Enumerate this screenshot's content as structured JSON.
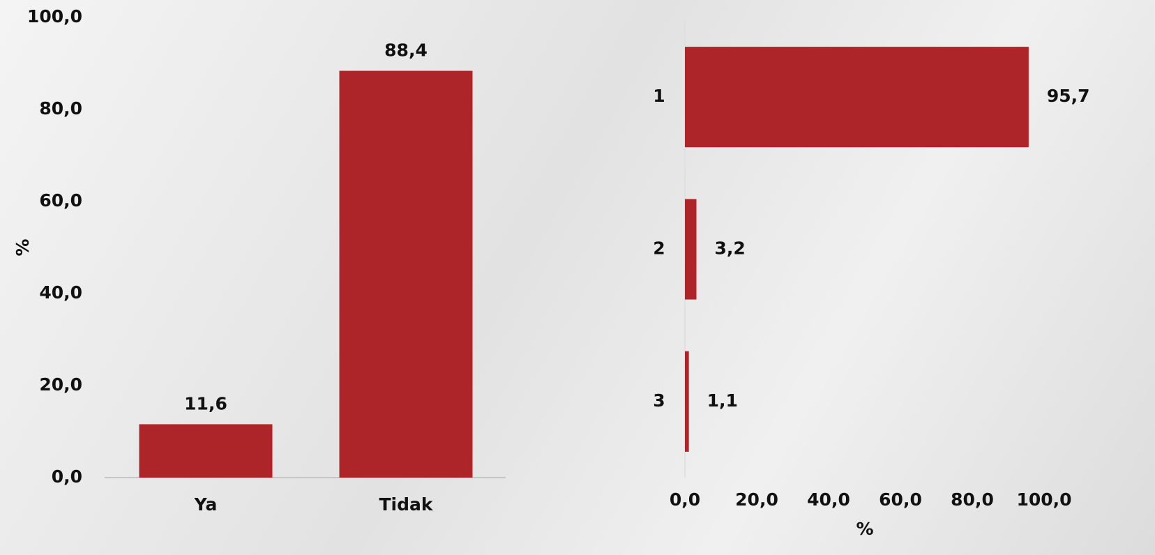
{
  "chart_data": [
    {
      "type": "bar",
      "orientation": "vertical",
      "categories": [
        "Ya",
        "Tidak"
      ],
      "values": [
        11.6,
        88.4
      ],
      "value_labels": [
        "11,6",
        "88,4"
      ],
      "color": "#ae2529",
      "ylabel": "%",
      "ylim": [
        0,
        100
      ],
      "yticks": [
        {
          "value": 0,
          "label": "0,0"
        },
        {
          "value": 20,
          "label": "20,0"
        },
        {
          "value": 40,
          "label": "40,0"
        },
        {
          "value": 60,
          "label": "60,0"
        },
        {
          "value": 80,
          "label": "80,0"
        },
        {
          "value": 100,
          "label": "100,0"
        }
      ]
    },
    {
      "type": "bar",
      "orientation": "horizontal",
      "categories": [
        "1",
        "2",
        "3"
      ],
      "values": [
        95.7,
        3.2,
        1.1
      ],
      "value_labels": [
        "95,7",
        "3,2",
        "1,1"
      ],
      "color": "#ae2529",
      "xlabel": "%",
      "xlim": [
        0,
        100
      ],
      "xticks": [
        {
          "value": 0,
          "label": "0,0"
        },
        {
          "value": 20,
          "label": "20,0"
        },
        {
          "value": 40,
          "label": "40,0"
        },
        {
          "value": 60,
          "label": "60,0"
        },
        {
          "value": 80,
          "label": "80,0"
        },
        {
          "value": 100,
          "label": "100,0"
        }
      ]
    }
  ]
}
